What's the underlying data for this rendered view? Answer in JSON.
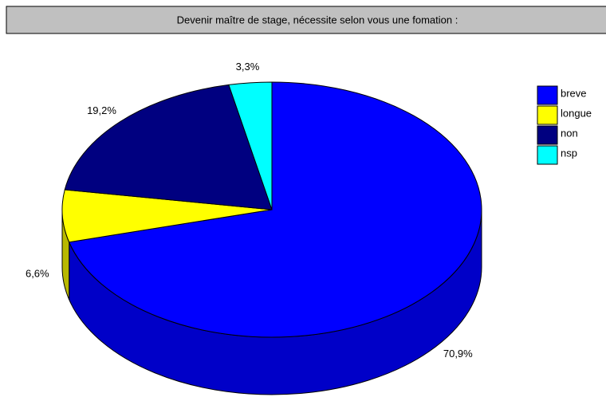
{
  "chart_data": {
    "type": "pie",
    "title": "Devenir maître de stage, nécessite selon vous une fomation :",
    "categories": [
      "breve",
      "longue",
      "non",
      "nsp"
    ],
    "values": [
      70.9,
      6.6,
      19.2,
      3.3
    ],
    "value_labels": [
      "70,9%",
      "6,6%",
      "19,2%",
      "3,3%"
    ],
    "colors": [
      "#0000ff",
      "#ffff00",
      "#000080",
      "#00ffff"
    ],
    "side_colors": [
      "#0000c8",
      "#b8b800",
      "#000060",
      "#00c0c0"
    ],
    "legend": "right"
  }
}
